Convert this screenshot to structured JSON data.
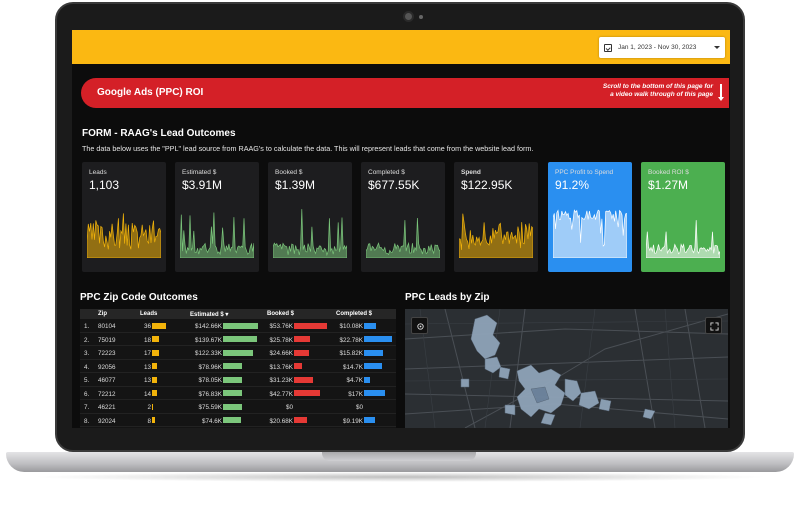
{
  "colors": {
    "accent_yellow": "#fbb812",
    "banner_red": "#d42027",
    "spend_orange": "#f2b30a",
    "green": "#7bc67b",
    "blue": "#2a8ff0",
    "bright_green": "#4caf50",
    "bar_red": "#e53935"
  },
  "date_range": "Jan 1, 2023 - Nov 30, 2023",
  "banner": {
    "title": "Google Ads (PPC) ROI",
    "note_line1": "Scroll to the bottom of this page for",
    "note_line2": "a video walk through of this page"
  },
  "section": {
    "title": "FORM - RAAG's Lead Outcomes",
    "description": "The data below uses the \"PPL\" lead source from RAAG's to calculate the data. This will represent leads that come from the website lead form."
  },
  "cards": [
    {
      "label": "Leads",
      "value": "1,103",
      "color": "#f2b30a",
      "bg": "#1d1d1f",
      "icon": "sparkline"
    },
    {
      "label": "Estimated $",
      "value": "$3.91M",
      "color": "#7bc67b",
      "bg": "#1d1d1f",
      "icon": "sparkline"
    },
    {
      "label": "Booked $",
      "value": "$1.39M",
      "color": "#7bc67b",
      "bg": "#1d1d1f",
      "icon": "sparkline"
    },
    {
      "label": "Completed $",
      "value": "$677.55K",
      "color": "#7bc67b",
      "bg": "#1d1d1f",
      "icon": "sparkline"
    },
    {
      "label": "Spend",
      "value": "$122.95K",
      "color": "#f2b30a",
      "bg": "#1d1d1f",
      "icon": "sparkline"
    },
    {
      "label": "PPC Profit to Spend",
      "value": "91.2%",
      "color": "#ffffff",
      "bg": "#2a8ff0",
      "icon": "sparkline"
    },
    {
      "label": "Booked ROI $",
      "value": "$1.27M",
      "color": "#ffffff",
      "bg": "#4caf50",
      "icon": "sparkline"
    }
  ],
  "zip_table": {
    "title": "PPC Zip Code Outcomes",
    "headers": [
      "Zip",
      "Leads",
      "Estimated $",
      "Booked $",
      "Completed $"
    ],
    "sort_indicator": "▾",
    "rows": [
      {
        "n": "1.",
        "zip": "80104",
        "leads": "36",
        "leads_v": 36,
        "est": "$142.66K",
        "est_v": 142.66,
        "booked": "$53.76K",
        "booked_v": 53.76,
        "comp": "$10.08K",
        "comp_v": 10.08
      },
      {
        "n": "2.",
        "zip": "75019",
        "leads": "18",
        "leads_v": 18,
        "est": "$139.67K",
        "est_v": 139.67,
        "booked": "$25.78K",
        "booked_v": 25.78,
        "comp": "$22.78K",
        "comp_v": 22.78
      },
      {
        "n": "3.",
        "zip": "72223",
        "leads": "17",
        "leads_v": 17,
        "est": "$122.33K",
        "est_v": 122.33,
        "booked": "$24.66K",
        "booked_v": 24.66,
        "comp": "$15.82K",
        "comp_v": 15.82
      },
      {
        "n": "4.",
        "zip": "92056",
        "leads": "13",
        "leads_v": 13,
        "est": "$78.96K",
        "est_v": 78.96,
        "booked": "$13.76K",
        "booked_v": 13.76,
        "comp": "$14.7K",
        "comp_v": 14.7
      },
      {
        "n": "5.",
        "zip": "46077",
        "leads": "13",
        "leads_v": 13,
        "est": "$78.05K",
        "est_v": 78.05,
        "booked": "$31.23K",
        "booked_v": 31.23,
        "comp": "$4.7K",
        "comp_v": 4.7
      },
      {
        "n": "6.",
        "zip": "72212",
        "leads": "14",
        "leads_v": 14,
        "est": "$76.83K",
        "est_v": 76.83,
        "booked": "$42.77K",
        "booked_v": 42.77,
        "comp": "$17K",
        "comp_v": 17
      },
      {
        "n": "7.",
        "zip": "46221",
        "leads": "2",
        "leads_v": 2,
        "est": "$75.59K",
        "est_v": 75.59,
        "booked": "$0",
        "booked_v": 0,
        "comp": "$0",
        "comp_v": 0
      },
      {
        "n": "8.",
        "zip": "92024",
        "leads": "8",
        "leads_v": 8,
        "est": "$74.6K",
        "est_v": 74.6,
        "booked": "$20.68K",
        "booked_v": 20.68,
        "comp": "$9.19K",
        "comp_v": 9.19
      }
    ]
  },
  "map": {
    "title": "PPC Leads by Zip",
    "left_button_icon": "location-icon",
    "right_button_icon": "fullscreen-icon"
  }
}
